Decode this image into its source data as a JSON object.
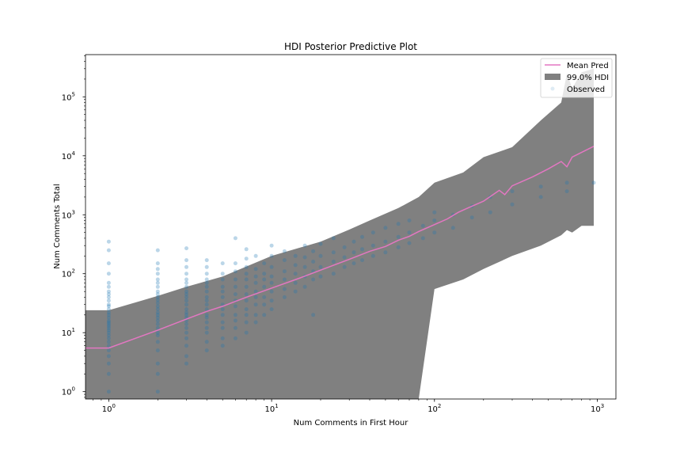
{
  "chart_data": {
    "type": "scatter",
    "title": "HDI Posterior Predictive Plot",
    "xlabel": "Num Comments in First Hour",
    "ylabel": "Num Comments Total",
    "xscale": "log",
    "yscale": "log",
    "xlim": [
      0.72,
      1300
    ],
    "ylim": [
      0.75,
      520000
    ],
    "x_ticks": [
      {
        "value": 1,
        "base": "10",
        "exp": "0"
      },
      {
        "value": 10,
        "base": "10",
        "exp": "1"
      },
      {
        "value": 100,
        "base": "10",
        "exp": "2"
      },
      {
        "value": 1000,
        "base": "10",
        "exp": "3"
      }
    ],
    "y_ticks": [
      {
        "value": 1,
        "base": "10",
        "exp": "0"
      },
      {
        "value": 10,
        "base": "10",
        "exp": "1"
      },
      {
        "value": 100,
        "base": "10",
        "exp": "2"
      },
      {
        "value": 1000,
        "base": "10",
        "exp": "3"
      },
      {
        "value": 10000,
        "base": "10",
        "exp": "4"
      },
      {
        "value": 100000,
        "base": "10",
        "exp": "5"
      }
    ],
    "grid": false,
    "legend_position": "top-right",
    "series": [
      {
        "name": "Mean Pred",
        "kind": "line",
        "color": "#e377c2",
        "x": [
          0.72,
          1,
          2,
          3,
          4,
          5,
          7,
          10,
          15,
          20,
          30,
          40,
          50,
          60,
          70,
          80,
          100,
          120,
          140,
          160,
          200,
          250,
          270,
          300,
          400,
          500,
          600,
          650,
          700,
          950
        ],
        "y": [
          5.5,
          5.5,
          11,
          17,
          23,
          28,
          40,
          57,
          85,
          115,
          175,
          240,
          290,
          370,
          430,
          520,
          680,
          850,
          1100,
          1300,
          1700,
          2600,
          2200,
          3100,
          4400,
          6000,
          8000,
          6500,
          9500,
          14500
        ]
      },
      {
        "name": "99.0% HDI",
        "kind": "band",
        "color": "#808080",
        "x": [
          0.72,
          1,
          2,
          3,
          5,
          10,
          20,
          30,
          40,
          60,
          80,
          100,
          150,
          200,
          300,
          450,
          600,
          650,
          700,
          800,
          950
        ],
        "upper": [
          24,
          24,
          42,
          60,
          90,
          200,
          350,
          560,
          800,
          1300,
          2000,
          3500,
          5200,
          9500,
          14000,
          40000,
          80000,
          250000,
          140000,
          260000,
          300000
        ],
        "lower": [
          0.75,
          0.75,
          0.75,
          0.75,
          0.75,
          0.75,
          0.75,
          0.75,
          0.75,
          0.75,
          0.75,
          55,
          80,
          120,
          200,
          300,
          450,
          550,
          500,
          650,
          650
        ]
      },
      {
        "name": "Observed",
        "kind": "points",
        "color": "#1f77b4",
        "columns": [
          {
            "x": 1,
            "y": [
              1,
              2,
              3,
              4,
              5,
              6,
              7,
              8,
              9,
              10,
              11,
              12,
              13,
              14,
              15,
              16,
              18,
              20,
              22,
              25,
              28,
              30,
              35,
              40,
              45,
              50,
              60,
              70,
              100,
              150,
              250,
              350
            ]
          },
          {
            "x": 2,
            "y": [
              1,
              2,
              3,
              5,
              7,
              9,
              10,
              12,
              14,
              16,
              18,
              20,
              22,
              25,
              28,
              32,
              36,
              40,
              45,
              50,
              60,
              70,
              80,
              100,
              120,
              150,
              250
            ]
          },
          {
            "x": 3,
            "y": [
              3,
              4,
              6,
              8,
              10,
              12,
              14,
              16,
              18,
              20,
              22,
              25,
              30,
              35,
              40,
              45,
              50,
              60,
              70,
              80,
              100,
              130,
              170,
              270
            ]
          },
          {
            "x": 4,
            "y": [
              5,
              7,
              10,
              12,
              15,
              18,
              20,
              25,
              30,
              35,
              40,
              50,
              60,
              70,
              80,
              100,
              130,
              170
            ]
          },
          {
            "x": 5,
            "y": [
              6,
              8,
              12,
              15,
              20,
              25,
              30,
              40,
              50,
              60,
              80,
              100,
              150
            ]
          },
          {
            "x": 6,
            "y": [
              8,
              12,
              16,
              20,
              28,
              35,
              45,
              60,
              80,
              110,
              150,
              400
            ]
          },
          {
            "x": 7,
            "y": [
              10,
              15,
              20,
              25,
              35,
              45,
              60,
              80,
              100,
              130,
              180,
              260
            ]
          },
          {
            "x": 8,
            "y": [
              15,
              20,
              30,
              40,
              50,
              70,
              90,
              120,
              200
            ]
          },
          {
            "x": 9,
            "y": [
              20,
              30,
              40,
              60,
              80,
              100,
              150
            ]
          },
          {
            "x": 10,
            "y": [
              25,
              35,
              50,
              70,
              90,
              130,
              200,
              300
            ]
          },
          {
            "x": 12,
            "y": [
              40,
              55,
              80,
              110,
              170,
              240
            ]
          },
          {
            "x": 14,
            "y": [
              50,
              70,
              100,
              140,
              200
            ]
          },
          {
            "x": 16,
            "y": [
              60,
              90,
              130,
              190,
              300
            ]
          },
          {
            "x": 18,
            "y": [
              20,
              80,
              110,
              160,
              240
            ]
          },
          {
            "x": 20,
            "y": [
              90,
              130,
              200,
              320
            ]
          },
          {
            "x": 24,
            "y": [
              100,
              160,
              230,
              400
            ]
          },
          {
            "x": 28,
            "y": [
              130,
              190,
              280
            ]
          },
          {
            "x": 32,
            "y": [
              150,
              230,
              350
            ]
          },
          {
            "x": 36,
            "y": [
              170,
              260,
              420
            ]
          },
          {
            "x": 42,
            "y": [
              200,
              300,
              500
            ]
          },
          {
            "x": 50,
            "y": [
              230,
              350,
              600
            ]
          },
          {
            "x": 60,
            "y": [
              280,
              420,
              700
            ]
          },
          {
            "x": 70,
            "y": [
              330,
              500,
              800
            ]
          },
          {
            "x": 85,
            "y": [
              400,
              650
            ]
          },
          {
            "x": 100,
            "y": [
              500,
              800,
              1100
            ]
          },
          {
            "x": 130,
            "y": [
              600,
              1000
            ]
          },
          {
            "x": 170,
            "y": [
              900,
              1400
            ]
          },
          {
            "x": 220,
            "y": [
              1100,
              2000
            ]
          },
          {
            "x": 300,
            "y": [
              1500,
              2500
            ]
          },
          {
            "x": 450,
            "y": [
              2000,
              3000
            ]
          },
          {
            "x": 650,
            "y": [
              2500,
              3500
            ]
          },
          {
            "x": 950,
            "y": [
              3500
            ]
          }
        ]
      }
    ]
  }
}
